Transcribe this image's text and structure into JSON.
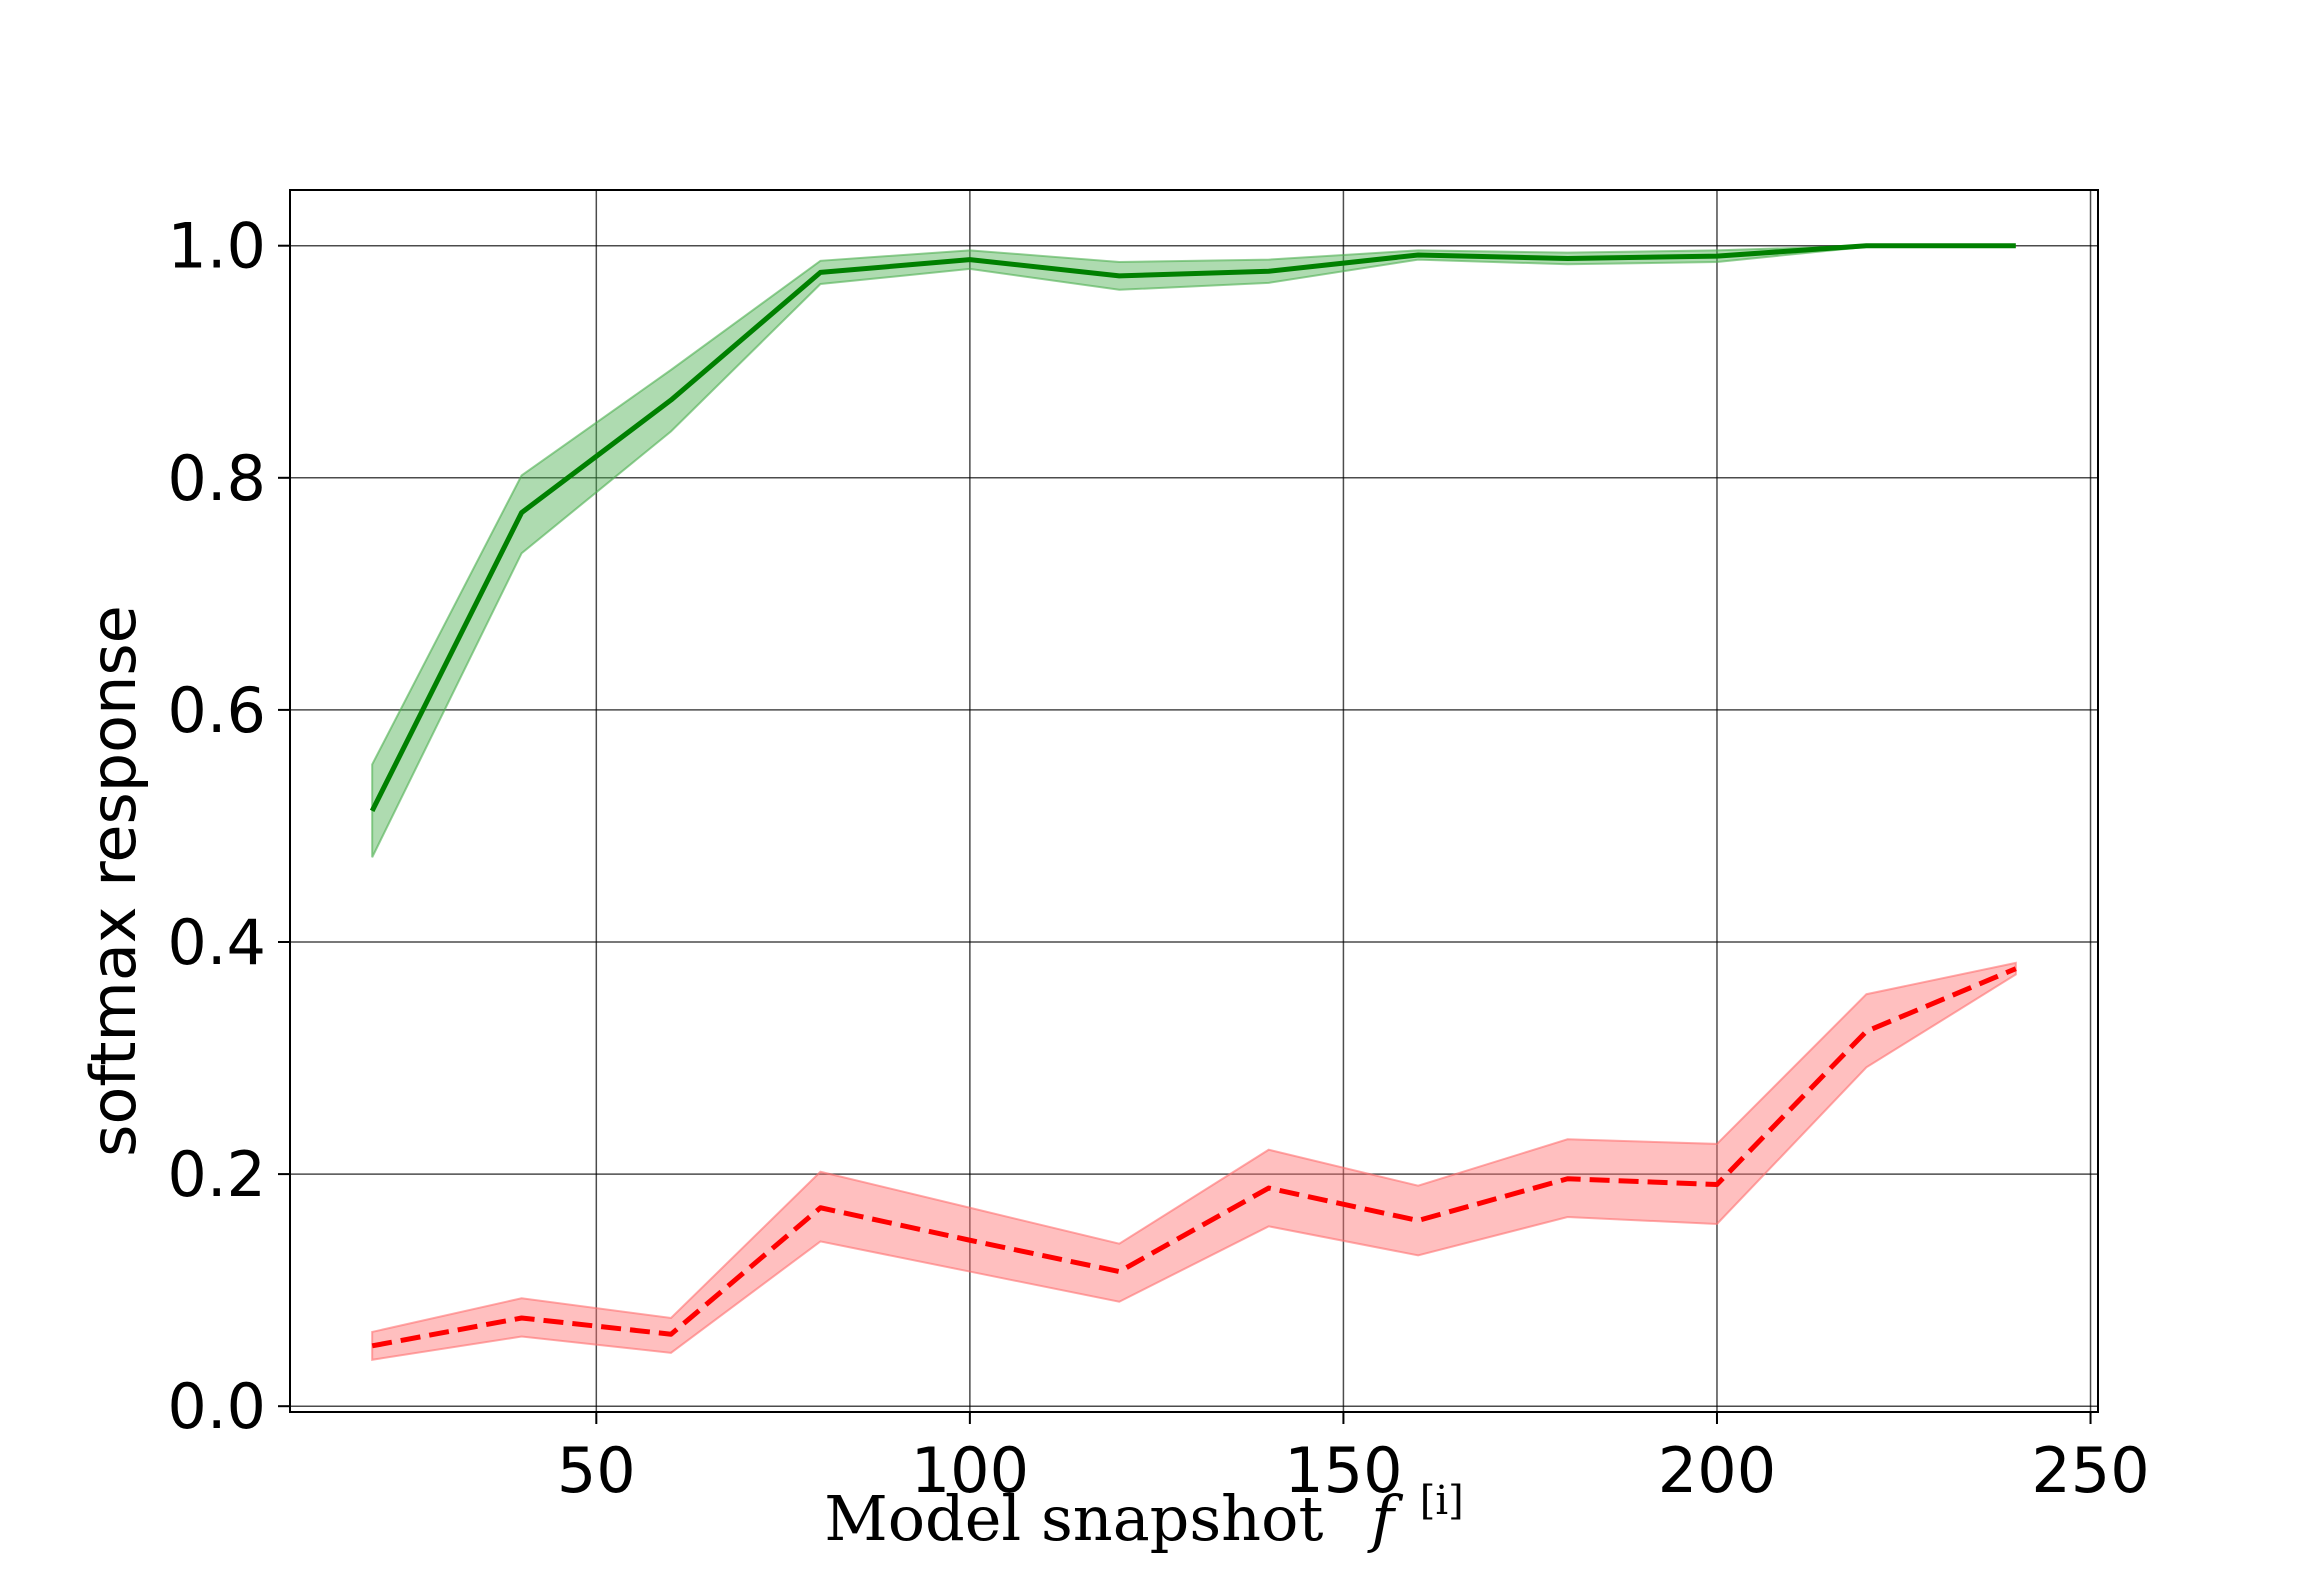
{
  "chart_data": {
    "type": "line",
    "xlabel": "Model snapshot",
    "xlabel_symbol": "f",
    "xlabel_superscript": "[i]",
    "ylabel": "softmax response",
    "xlim": [
      9,
      251
    ],
    "ylim": [
      -0.005,
      1.048
    ],
    "xticks": [
      50,
      100,
      150,
      200,
      250
    ],
    "xtick_labels": [
      "50",
      "100",
      "150",
      "200",
      "250"
    ],
    "yticks": [
      0.0,
      0.2,
      0.4,
      0.6,
      0.8,
      1.0
    ],
    "ytick_labels": [
      "0.0",
      "0.2",
      "0.4",
      "0.6",
      "0.8",
      "1.0"
    ],
    "grid": true,
    "x": [
      20,
      40,
      60,
      80,
      100,
      120,
      140,
      160,
      180,
      200,
      220,
      240
    ],
    "series": [
      {
        "color": "#008000",
        "line_style": "solid",
        "band_color": "#4caf50",
        "values": [
          0.513,
          0.77,
          0.867,
          0.977,
          0.988,
          0.974,
          0.978,
          0.992,
          0.989,
          0.991,
          1.0,
          1.0
        ],
        "lower": [
          0.473,
          0.735,
          0.84,
          0.967,
          0.98,
          0.962,
          0.968,
          0.988,
          0.984,
          0.986,
          0.999,
          1.0
        ],
        "upper": [
          0.553,
          0.802,
          0.893,
          0.987,
          0.996,
          0.986,
          0.988,
          0.996,
          0.994,
          0.996,
          1.0,
          1.0
        ]
      },
      {
        "color": "#ff0000",
        "line_style": "dashed",
        "band_color": "#ff7070",
        "values": [
          0.052,
          0.076,
          0.062,
          0.171,
          0.143,
          0.116,
          0.188,
          0.16,
          0.196,
          0.191,
          0.323,
          0.377
        ],
        "lower": [
          0.04,
          0.06,
          0.046,
          0.142,
          0.116,
          0.09,
          0.155,
          0.13,
          0.163,
          0.157,
          0.292,
          0.372
        ],
        "upper": [
          0.064,
          0.093,
          0.076,
          0.202,
          0.171,
          0.14,
          0.221,
          0.19,
          0.23,
          0.226,
          0.355,
          0.382
        ]
      }
    ]
  }
}
